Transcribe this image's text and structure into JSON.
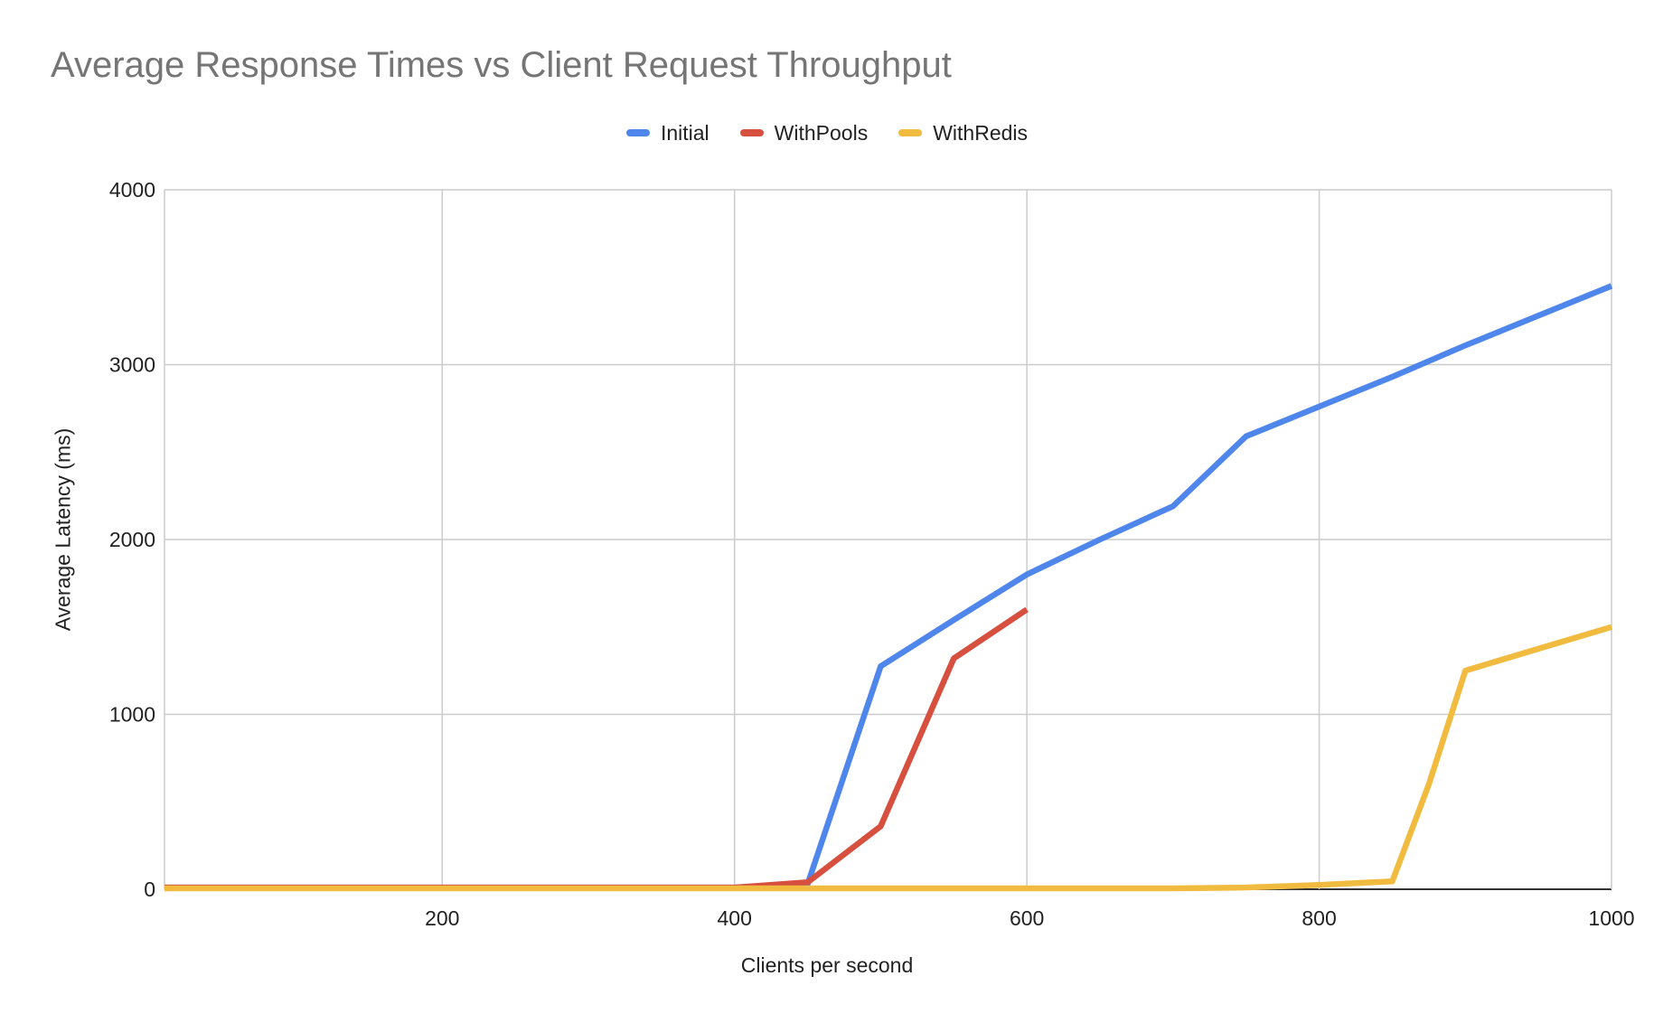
{
  "chart_data": {
    "type": "line",
    "title": "Average Response Times vs Client Request Throughput",
    "xlabel": "Clients per second",
    "ylabel": "Average Latency (ms)",
    "xlim": [
      10,
      1000
    ],
    "ylim": [
      0,
      4000
    ],
    "x_ticks": [
      200,
      400,
      600,
      800,
      1000
    ],
    "y_ticks": [
      0,
      1000,
      2000,
      3000,
      4000
    ],
    "grid": true,
    "legend_position": "top-center",
    "series": [
      {
        "name": "Initial",
        "color": "#4f86ec",
        "x": [
          10,
          50,
          100,
          150,
          200,
          250,
          300,
          350,
          400,
          450,
          500,
          550,
          600,
          650,
          700,
          750,
          800,
          850,
          900,
          950,
          1000
        ],
        "y": [
          10,
          10,
          10,
          10,
          10,
          10,
          10,
          10,
          10,
          30,
          1275,
          1540,
          1800,
          2000,
          2190,
          2590,
          2760,
          2930,
          3110,
          3280,
          3450
        ]
      },
      {
        "name": "WithPools",
        "color": "#d64f3f",
        "x": [
          10,
          50,
          100,
          150,
          200,
          250,
          300,
          350,
          400,
          450,
          500,
          550,
          600
        ],
        "y": [
          10,
          10,
          10,
          10,
          10,
          10,
          10,
          10,
          10,
          40,
          360,
          1320,
          1600
        ]
      },
      {
        "name": "WithRedis",
        "color": "#f1bb3f",
        "x": [
          10,
          50,
          100,
          150,
          200,
          250,
          300,
          350,
          400,
          450,
          500,
          550,
          600,
          650,
          700,
          750,
          800,
          850,
          875,
          900,
          950,
          1000
        ],
        "y": [
          5,
          5,
          5,
          5,
          5,
          5,
          5,
          5,
          5,
          5,
          5,
          5,
          5,
          5,
          5,
          10,
          25,
          45,
          600,
          1250,
          1375,
          1500
        ]
      }
    ]
  }
}
